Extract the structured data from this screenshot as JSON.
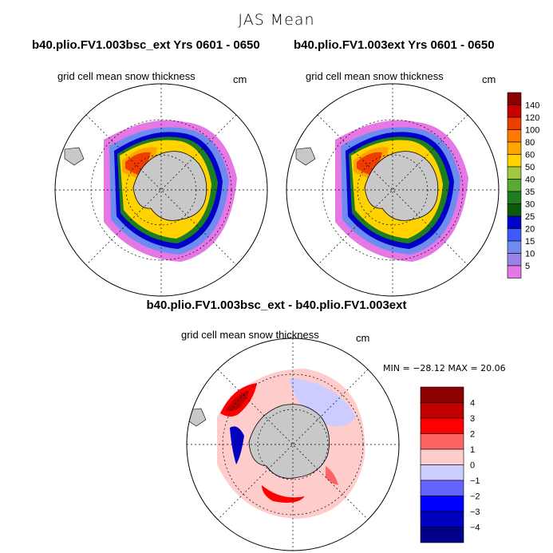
{
  "figure": {
    "title": "JAS Mean",
    "left_title": "b40.plio.FV1.003bsc_ext  Yrs 0601 - 0650",
    "right_title": "b40.plio.FV1.003ext  Yrs 0601 - 0650",
    "diff_title": "b40.plio.FV1.003bsc_ext - b40.plio.FV1.003ext"
  },
  "panels": {
    "left": {
      "variable": "grid cell mean snow thickness",
      "units": "cm"
    },
    "right": {
      "variable": "grid cell mean snow thickness",
      "units": "cm"
    },
    "diff": {
      "variable": "grid cell mean snow thickness",
      "units": "cm"
    }
  },
  "stats": {
    "min_label": "MIN =",
    "min": "−28.12",
    "max_label": "MAX =",
    "max": "20.06"
  },
  "colorbar_main": {
    "ticks": [
      "140",
      "120",
      "100",
      "80",
      "60",
      "50",
      "40",
      "35",
      "30",
      "25",
      "20",
      "15",
      "10",
      "5"
    ],
    "colors": [
      "#8b0000",
      "#c80000",
      "#f03c00",
      "#ff7a00",
      "#ffa500",
      "#ffd200",
      "#a0c840",
      "#5aaa32",
      "#1e7d1e",
      "#0a5a0a",
      "#0000c8",
      "#3c5aff",
      "#6e8cf0",
      "#9b82e6",
      "#e678e6"
    ]
  },
  "colorbar_diff": {
    "ticks": [
      "4",
      "3",
      "2",
      "1",
      "0",
      "−1",
      "−2",
      "−3",
      "−4"
    ],
    "colors": [
      "#8b0000",
      "#c00000",
      "#ff0000",
      "#ff6464",
      "#ffcccc",
      "#ccccff",
      "#6464ff",
      "#0000ff",
      "#0000c0",
      "#00008b"
    ]
  },
  "colors": {
    "land": "#c8c8c8",
    "coast": "#000000",
    "grid": "#000000"
  }
}
